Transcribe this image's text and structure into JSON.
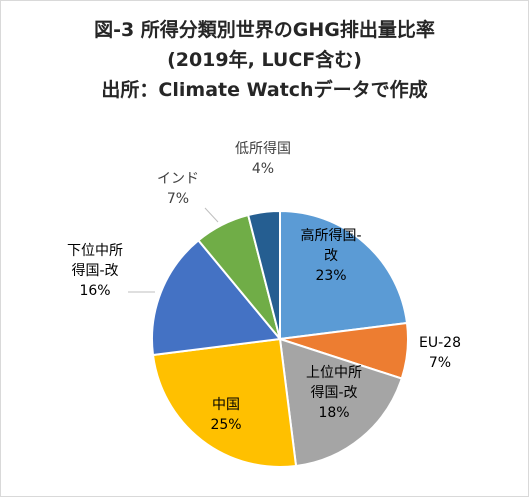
{
  "chart_data": {
    "type": "pie",
    "title": [
      "図-3 所得分類別世界のGHG排出量比率",
      "(2019年, LUCF含む)",
      "出所：Climate Watchデータで作成"
    ],
    "slices": [
      {
        "label": [
          "高所得国-",
          "改"
        ],
        "percent_label": "23%",
        "value": 23,
        "color": "#5b9bd5"
      },
      {
        "label": [
          "EU-28"
        ],
        "percent_label": "7%",
        "value": 7,
        "color": "#ed7d31"
      },
      {
        "label": [
          "上位中所",
          "得国-改"
        ],
        "percent_label": "18%",
        "value": 18,
        "color": "#a5a5a5"
      },
      {
        "label": [
          "中国"
        ],
        "percent_label": "25%",
        "value": 25,
        "color": "#ffc000"
      },
      {
        "label": [
          "下位中所",
          "得国-改"
        ],
        "percent_label": "16%",
        "value": 16,
        "color": "#4472c4"
      },
      {
        "label": [
          "インド"
        ],
        "percent_label": "7%",
        "value": 7,
        "color": "#70ad47"
      },
      {
        "label": [
          "低所得国"
        ],
        "percent_label": "4%",
        "value": 4,
        "color": "#255e91"
      }
    ],
    "start_angle": "12 o'clock",
    "direction": "clockwise",
    "legend": "none",
    "data_labels": "category and percent"
  }
}
